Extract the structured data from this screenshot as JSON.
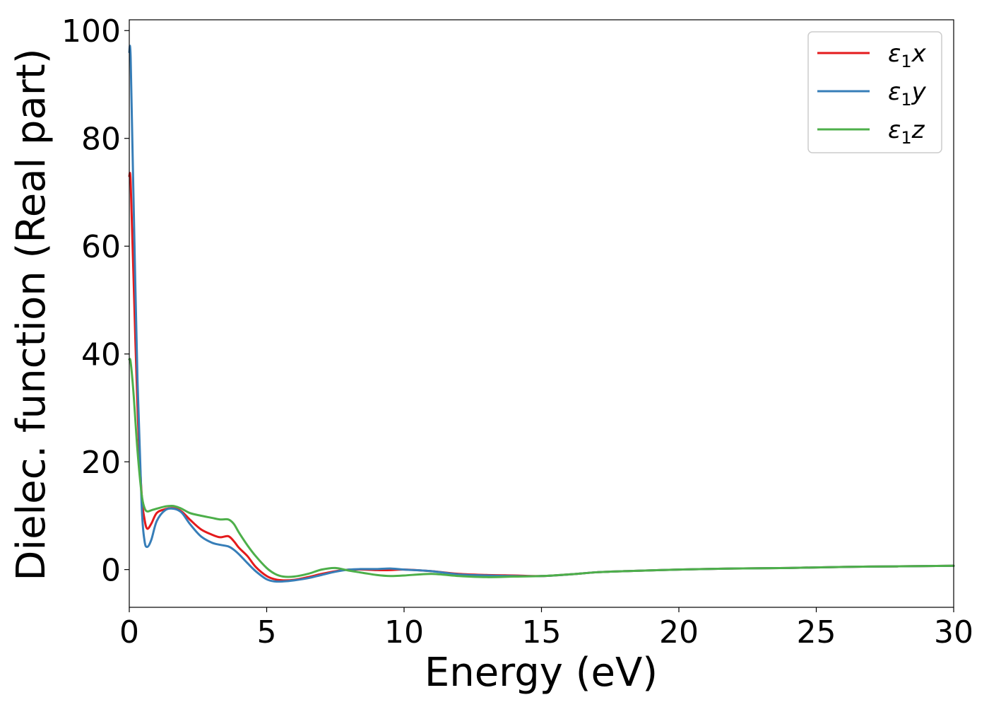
{
  "chart_data": {
    "type": "line",
    "title": "",
    "xlabel": "Energy (eV)",
    "ylabel": "Dielec. function (Real part)",
    "xlim": [
      0,
      30
    ],
    "ylim": [
      -7,
      102
    ],
    "xticks": [
      "0",
      "5",
      "10",
      "15",
      "20",
      "25",
      "30"
    ],
    "yticks": [
      "0",
      "20",
      "40",
      "60",
      "80",
      "100"
    ],
    "grid": false,
    "legend": "top-right",
    "series": [
      {
        "name": "ε1x",
        "name_symbol": "ε",
        "name_sub": "1",
        "name_var": "x",
        "color": "#e41a1c",
        "x": [
          0.0,
          0.05,
          0.15,
          0.3,
          0.45,
          0.55,
          0.65,
          0.8,
          1.0,
          1.3,
          1.6,
          1.9,
          2.2,
          2.6,
          3.0,
          3.3,
          3.6,
          3.8,
          4.0,
          4.3,
          4.6,
          5.0,
          5.3,
          5.6,
          6.0,
          6.5,
          7.0,
          7.5,
          8.0,
          8.5,
          9.0,
          9.5,
          10.0,
          11.0,
          12.0,
          13.0,
          14.0,
          15.0,
          16.0,
          17.0,
          18.0,
          20.0,
          22.0,
          24.0,
          26.0,
          28.0,
          30.0
        ],
        "y": [
          73,
          72,
          55,
          30,
          14,
          9.5,
          7.6,
          8.5,
          10.5,
          11.2,
          11.4,
          10.8,
          9.3,
          7.5,
          6.5,
          6.0,
          6.2,
          5.3,
          4.0,
          2.5,
          0.5,
          -1.2,
          -1.8,
          -2.0,
          -1.9,
          -1.4,
          -0.8,
          -0.3,
          0.0,
          0.0,
          -0.1,
          -0.1,
          0.0,
          -0.3,
          -0.8,
          -1.0,
          -1.1,
          -1.2,
          -0.9,
          -0.5,
          -0.3,
          0.0,
          0.2,
          0.3,
          0.5,
          0.6,
          0.7
        ]
      },
      {
        "name": "ε1y",
        "name_symbol": "ε",
        "name_sub": "1",
        "name_var": "y",
        "color": "#377eb8",
        "x": [
          0.0,
          0.05,
          0.15,
          0.3,
          0.45,
          0.55,
          0.65,
          0.8,
          1.0,
          1.3,
          1.6,
          1.9,
          2.2,
          2.6,
          3.0,
          3.3,
          3.6,
          3.8,
          4.0,
          4.3,
          4.6,
          5.0,
          5.3,
          5.6,
          6.0,
          6.5,
          7.0,
          7.5,
          8.0,
          8.5,
          9.0,
          9.5,
          10.0,
          11.0,
          12.0,
          13.0,
          14.0,
          15.0,
          16.0,
          17.0,
          18.0,
          20.0,
          22.0,
          24.0,
          26.0,
          28.0,
          30.0
        ],
        "y": [
          96,
          95,
          70,
          35,
          12,
          5.5,
          4.2,
          5.5,
          9.0,
          11.0,
          11.3,
          10.6,
          8.5,
          6.2,
          5.0,
          4.6,
          4.3,
          3.7,
          2.8,
          1.2,
          -0.3,
          -1.8,
          -2.2,
          -2.2,
          -2.0,
          -1.6,
          -1.0,
          -0.4,
          0.0,
          0.1,
          0.1,
          0.2,
          0.0,
          -0.3,
          -0.9,
          -1.1,
          -1.2,
          -1.2,
          -0.9,
          -0.5,
          -0.3,
          0.0,
          0.2,
          0.3,
          0.5,
          0.6,
          0.7
        ]
      },
      {
        "name": "ε1z",
        "name_symbol": "ε",
        "name_sub": "1",
        "name_var": "z",
        "color": "#4daf4a",
        "x": [
          0.0,
          0.05,
          0.15,
          0.3,
          0.45,
          0.55,
          0.65,
          0.8,
          1.0,
          1.3,
          1.6,
          1.9,
          2.2,
          2.6,
          3.0,
          3.3,
          3.6,
          3.8,
          4.0,
          4.3,
          4.6,
          5.0,
          5.3,
          5.6,
          6.0,
          6.5,
          7.0,
          7.5,
          8.0,
          8.5,
          9.0,
          9.5,
          10.0,
          11.0,
          12.0,
          13.0,
          14.0,
          15.0,
          16.0,
          17.0,
          18.0,
          20.0,
          22.0,
          24.0,
          26.0,
          28.0,
          30.0
        ],
        "y": [
          39,
          38.5,
          33,
          22,
          14,
          11.5,
          10.8,
          11.0,
          11.3,
          11.7,
          11.8,
          11.3,
          10.5,
          10.0,
          9.6,
          9.3,
          9.3,
          8.5,
          6.8,
          4.5,
          2.5,
          0.3,
          -0.8,
          -1.3,
          -1.3,
          -0.8,
          0.0,
          0.3,
          -0.2,
          -0.6,
          -1.0,
          -1.2,
          -1.1,
          -0.8,
          -1.2,
          -1.4,
          -1.3,
          -1.2,
          -0.9,
          -0.5,
          -0.3,
          0.0,
          0.2,
          0.3,
          0.5,
          0.6,
          0.7
        ]
      }
    ]
  }
}
